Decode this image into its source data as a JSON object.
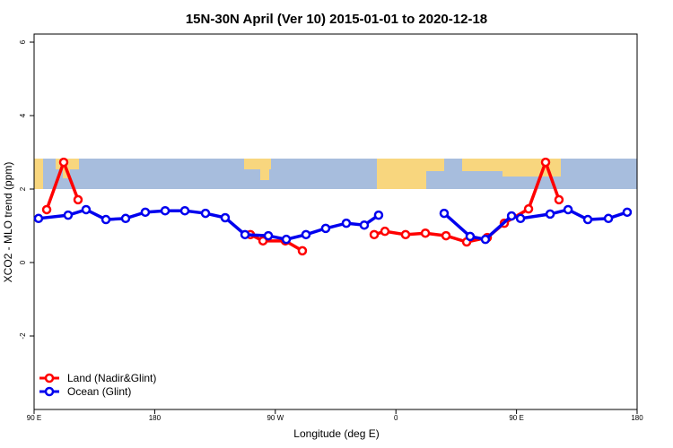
{
  "chart_data": {
    "type": "line",
    "title": "15N-30N April (Ver 10)   2015-01-01 to 2020-12-18",
    "x_label": "Longitude (deg E)",
    "y_label": "XCO2 - MLO trend (ppm)",
    "xlim": [
      90,
      540
    ],
    "xticks": [
      {
        "value": 90,
        "label": "90 E"
      },
      {
        "value": 180,
        "label": "180"
      },
      {
        "value": 270,
        "label": "90 W"
      },
      {
        "value": 360,
        "label": "0"
      },
      {
        "value": 450,
        "label": "90 E"
      },
      {
        "value": 540,
        "label": "180"
      }
    ],
    "ylim": [
      -4,
      6.22
    ],
    "yticks": [
      -2,
      0,
      2,
      4,
      6
    ],
    "legend": "bottom-left",
    "series": [
      {
        "name": "Land (Nadir&Glint)",
        "color": "#ff0000",
        "x": [
          99.4,
          112.1,
          122.8,
          null,
          251.4,
          260.8,
          277.5,
          290.2,
          null,
          343.8,
          351.8,
          367.2,
          382.0,
          397.4,
          412.8,
          428.2,
          440.9,
          459.0,
          471.7,
          481.7
        ],
        "values": [
          1.44,
          2.73,
          1.71,
          null,
          0.76,
          0.59,
          0.59,
          0.32,
          null,
          0.76,
          0.85,
          0.76,
          0.8,
          0.73,
          0.56,
          0.68,
          1.07,
          1.46,
          2.73,
          1.71
        ]
      },
      {
        "name": "Ocean (Glint)",
        "color": "#0000ee",
        "x": [
          93.3,
          115.4,
          128.8,
          143.6,
          158.3,
          173.0,
          187.8,
          202.5,
          217.9,
          232.6,
          247.4,
          264.8,
          278.2,
          292.9,
          307.6,
          323.0,
          336.4,
          347.1,
          null,
          396.0,
          415.4,
          426.8,
          446.3,
          453.0,
          475.1,
          488.5,
          503.2,
          518.6,
          532.6
        ],
        "values": [
          1.2,
          1.29,
          1.44,
          1.17,
          1.2,
          1.37,
          1.41,
          1.41,
          1.34,
          1.22,
          0.76,
          0.73,
          0.63,
          0.76,
          0.93,
          1.07,
          1.02,
          1.29,
          null,
          1.34,
          0.71,
          0.63,
          1.27,
          1.2,
          1.32,
          1.44,
          1.17,
          1.2,
          1.37
        ]
      }
    ]
  }
}
